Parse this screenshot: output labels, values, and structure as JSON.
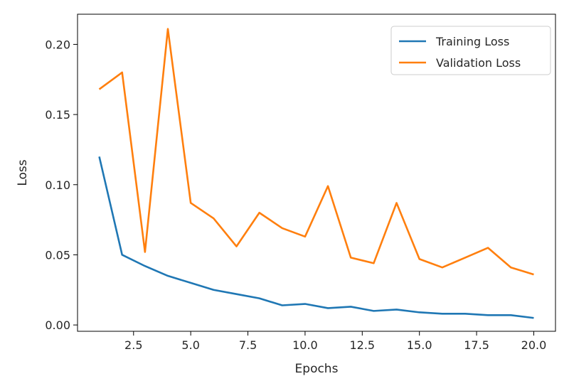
{
  "chart_data": {
    "type": "line",
    "title": "",
    "xlabel": "Epochs",
    "ylabel": "Loss",
    "xlim": [
      0.05,
      20.95
    ],
    "ylim": [
      -0.0045,
      0.2215
    ],
    "xticks": [
      2.5,
      5.0,
      7.5,
      10.0,
      12.5,
      15.0,
      17.5,
      20.0
    ],
    "xtick_labels": [
      "2.5",
      "5.0",
      "7.5",
      "10.0",
      "12.5",
      "15.0",
      "17.5",
      "20.0"
    ],
    "yticks": [
      0.0,
      0.05,
      0.1,
      0.15,
      0.2
    ],
    "ytick_labels": [
      "0.00",
      "0.05",
      "0.10",
      "0.15",
      "0.20"
    ],
    "grid": false,
    "legend_position": "top-right",
    "x": [
      1,
      2,
      3,
      4,
      5,
      6,
      7,
      8,
      9,
      10,
      11,
      12,
      13,
      14,
      15,
      16,
      17,
      18,
      19,
      20
    ],
    "series": [
      {
        "name": "Training Loss",
        "color": "#1f77b4",
        "values": [
          0.12,
          0.05,
          0.042,
          0.035,
          0.03,
          0.025,
          0.022,
          0.019,
          0.014,
          0.015,
          0.012,
          0.013,
          0.01,
          0.011,
          0.009,
          0.008,
          0.008,
          0.007,
          0.007,
          0.005
        ]
      },
      {
        "name": "Validation Loss",
        "color": "#ff7f0e",
        "values": [
          0.168,
          0.18,
          0.052,
          0.211,
          0.087,
          0.076,
          0.056,
          0.08,
          0.069,
          0.063,
          0.099,
          0.048,
          0.044,
          0.087,
          0.047,
          0.041,
          0.048,
          0.055,
          0.041,
          0.036
        ]
      }
    ]
  }
}
